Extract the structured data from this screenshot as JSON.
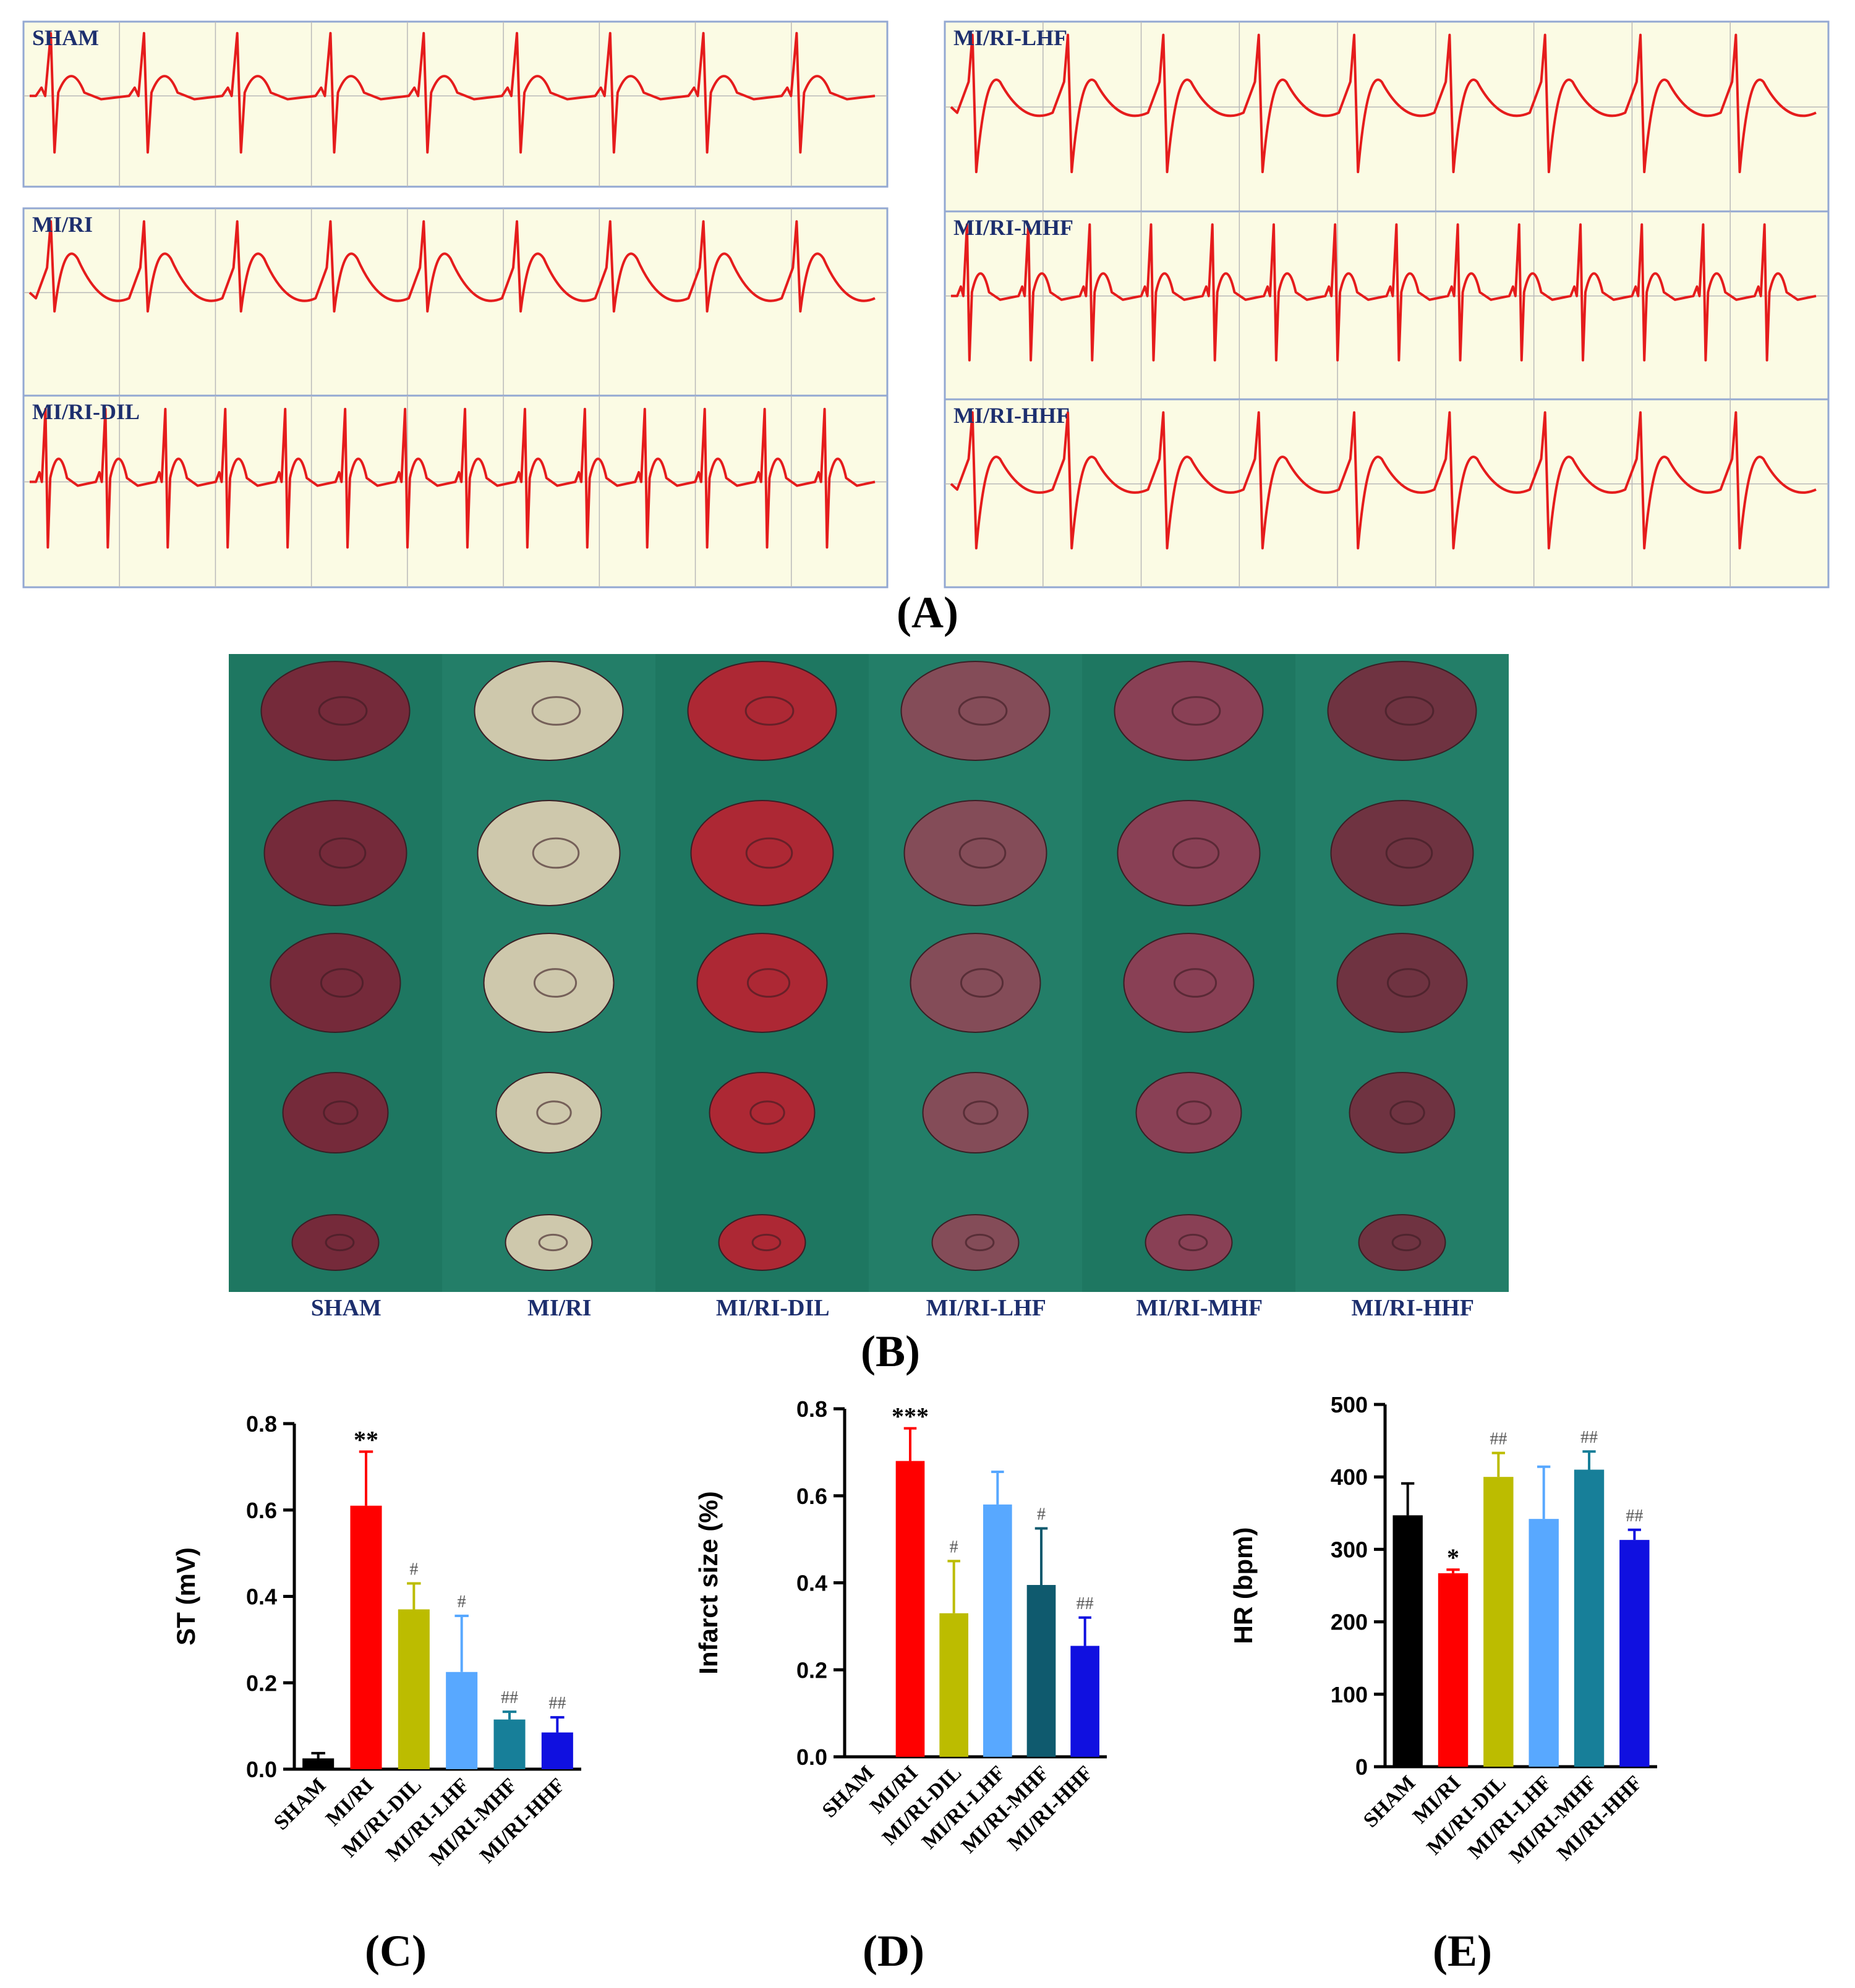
{
  "panel_labels": {
    "A": "(A)",
    "B": "(B)",
    "C": "(C)",
    "D": "(D)",
    "E": "(E)"
  },
  "ecg_panels": [
    {
      "label": "SHAM",
      "pattern": "normal"
    },
    {
      "label": "MI/RI",
      "pattern": "elevated"
    },
    {
      "label": "MI/RI-DIL",
      "pattern": "normal-fast"
    },
    {
      "label": "MI/RI-LHF",
      "pattern": "elevated-mild"
    },
    {
      "label": "MI/RI-MHF",
      "pattern": "normal-fast"
    },
    {
      "label": "MI/RI-HHF",
      "pattern": "elevated-mild"
    }
  ],
  "ecg_colors": {
    "trace": "#e51c1c",
    "background": "#fbfbe4",
    "grid": "#b9b9b9",
    "border": "#93a8d2"
  },
  "heart_photo": {
    "groups": [
      "SHAM",
      "MI/RI",
      "MI/RI-DIL",
      "MI/RI-LHF",
      "MI/RI-MHF",
      "MI/RI-HHF"
    ],
    "background": "#1f7a65",
    "slice_colors": [
      "#7a2638",
      "#d8ccb0",
      "#b52432",
      "#8a4a58",
      "#8f3e55",
      "#74303f"
    ]
  },
  "chart_data": [
    {
      "type": "bar",
      "title": "",
      "ylabel": "ST (mV)",
      "xlabel": "",
      "ylim": [
        0,
        0.8
      ],
      "yticks": [
        "0.0",
        "0.2",
        "0.4",
        "0.6",
        "0.8"
      ],
      "ytick_values": [
        0,
        0.2,
        0.4,
        0.6,
        0.8
      ],
      "categories": [
        "SHAM",
        "MI/RI",
        "MI/RI-DIL",
        "MI/RI-LHF",
        "MI/RI-MHF",
        "MI/RI-HHF"
      ],
      "values": [
        0.025,
        0.61,
        0.37,
        0.225,
        0.115,
        0.085
      ],
      "errors": [
        0.012,
        0.125,
        0.06,
        0.13,
        0.018,
        0.035
      ],
      "colors": [
        "#000000",
        "#ff0000",
        "#bcbc00",
        "#58a8ff",
        "#177f99",
        "#1010e0"
      ],
      "annotations": [
        "",
        "**",
        "#",
        "#",
        "##",
        "##"
      ]
    },
    {
      "type": "bar",
      "title": "",
      "ylabel": "Infarct size (%)",
      "xlabel": "",
      "ylim": [
        0,
        0.8
      ],
      "yticks": [
        "0.0",
        "0.2",
        "0.4",
        "0.6",
        "0.8"
      ],
      "ytick_values": [
        0,
        0.2,
        0.4,
        0.6,
        0.8
      ],
      "categories": [
        "SHAM",
        "MI/RI",
        "MI/RI-DIL",
        "MI/RI-LHF",
        "MI/RI-MHF",
        "MI/RI-HHF"
      ],
      "values": [
        0,
        0.68,
        0.33,
        0.58,
        0.395,
        0.255
      ],
      "errors": [
        0,
        0.075,
        0.12,
        0.075,
        0.13,
        0.065
      ],
      "colors": [
        "#000000",
        "#ff0000",
        "#bcbc00",
        "#58a8ff",
        "#0f5a6e",
        "#1010e0"
      ],
      "annotations": [
        "",
        "***",
        "#",
        "",
        "#",
        "##"
      ]
    },
    {
      "type": "bar",
      "title": "",
      "ylabel": "HR (bpm)",
      "xlabel": "",
      "ylim": [
        0,
        500
      ],
      "yticks": [
        "0",
        "100",
        "200",
        "300",
        "400",
        "500"
      ],
      "ytick_values": [
        0,
        100,
        200,
        300,
        400,
        500
      ],
      "categories": [
        "SHAM",
        "MI/RI",
        "MI/RI-DIL",
        "MI/RI-LHF",
        "MI/RI-MHF",
        "MI/RI-HHF"
      ],
      "values": [
        347,
        267,
        400,
        342,
        410,
        313
      ],
      "errors": [
        44,
        5,
        33,
        72,
        25,
        14
      ],
      "colors": [
        "#000000",
        "#ff0000",
        "#bcbc00",
        "#58a8ff",
        "#177f99",
        "#1010e0"
      ],
      "annotations": [
        "",
        "*",
        "##",
        "",
        "##",
        "##"
      ]
    }
  ]
}
